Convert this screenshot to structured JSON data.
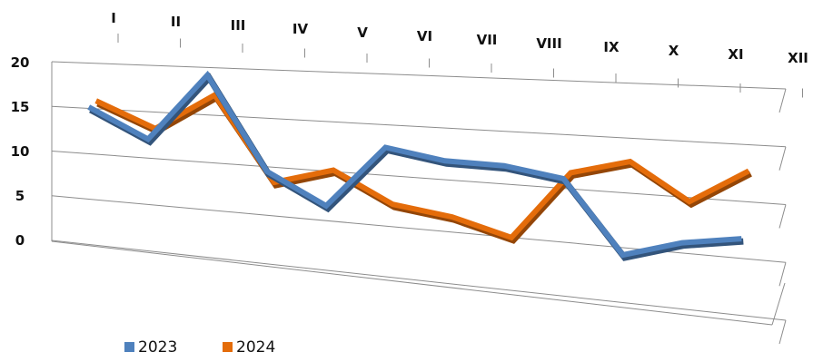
{
  "chart_data": {
    "type": "line",
    "style": "3d-ribbon",
    "categories": [
      "I",
      "II",
      "III",
      "IV",
      "V",
      "VI",
      "VII",
      "VIII",
      "IX",
      "X",
      "XI",
      "XII"
    ],
    "ylim": [
      0,
      20
    ],
    "yticks": [
      0,
      5,
      10,
      15,
      20
    ],
    "grid": true,
    "legend_position": "bottom-left",
    "series": [
      {
        "name": "2023",
        "color": "#4F81BD",
        "values": [
          15,
          11.5,
          19,
          8,
          4,
          11,
          9.5,
          9,
          7.5,
          -2,
          -0.5,
          0
        ]
      },
      {
        "name": "2024",
        "color": "#E46C0A",
        "values": [
          15.5,
          12.5,
          16.5,
          6.5,
          8,
          4,
          2.5,
          0,
          8,
          9.5,
          4.5,
          8.5
        ]
      }
    ]
  }
}
